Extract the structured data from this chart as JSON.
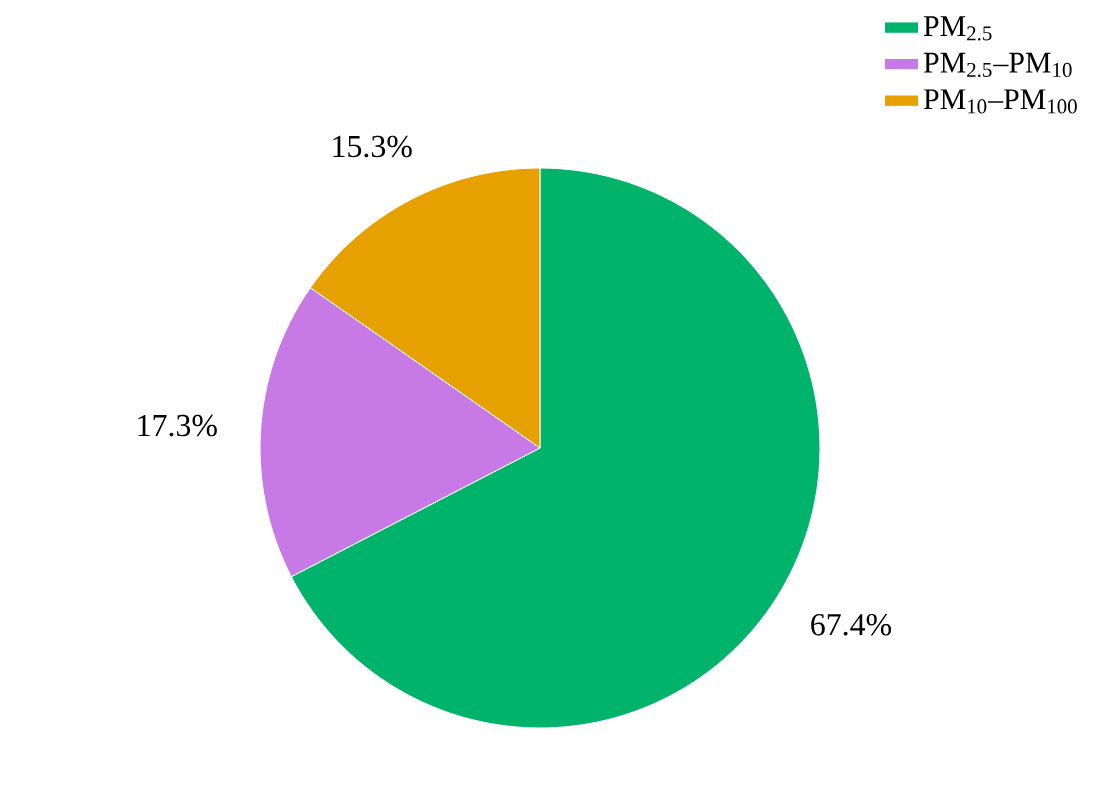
{
  "chart_data": {
    "type": "pie",
    "categories": [
      "PM$_{2.5}$",
      "PM$_{2.5}$–PM$_{10}$",
      "PM$_{10}$–PM$_{100}$"
    ],
    "values": [
      67.4,
      17.3,
      15.3
    ],
    "colors": [
      "#00b36b",
      "#c77ae6",
      "#e6a000"
    ],
    "value_labels": [
      "67.4%",
      "17.3%",
      "15.3%"
    ],
    "legend": "top right"
  }
}
